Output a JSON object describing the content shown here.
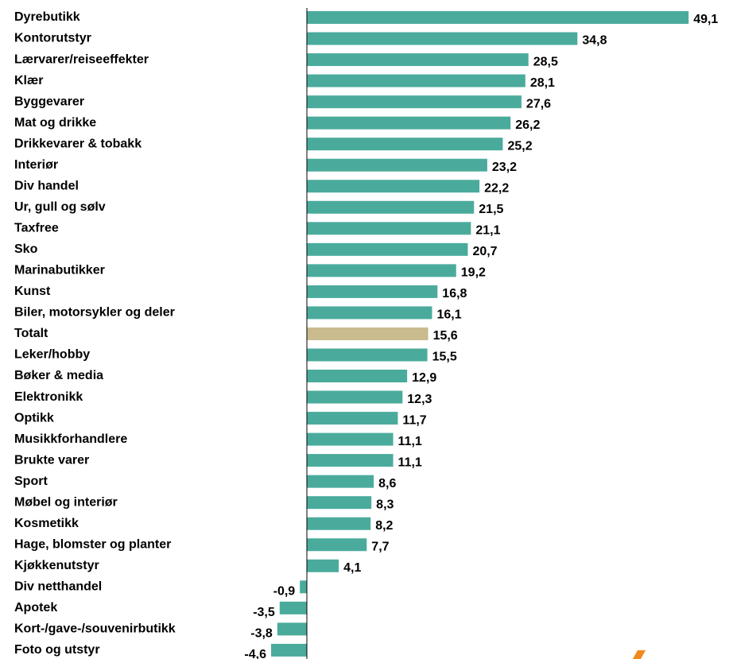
{
  "chart_data": {
    "type": "barh",
    "categories": [
      "Dyrebutikk",
      "Kontorutstyr",
      "Lærvarer/reiseeffekter",
      "Klær",
      "Byggevarer",
      "Mat og drikke",
      "Drikkevarer & tobakk",
      "Interiør",
      "Div handel",
      "Ur, gull og sølv",
      "Taxfree",
      "Sko",
      "Marinabutikker",
      "Kunst",
      "Biler, motorsykler og deler",
      "Totalt",
      "Leker/hobby",
      "Bøker & media",
      "Elektronikk",
      "Optikk",
      "Musikkforhandlere",
      "Brukte varer",
      "Sport",
      "Møbel og interiør",
      "Kosmetikk",
      "Hage, blomster og planter",
      "Kjøkkenutstyr",
      "Div netthandel",
      "Apotek",
      "Kort-/gave-/souvenirbutikk",
      "Foto og utstyr"
    ],
    "values": [
      49.1,
      34.8,
      28.5,
      28.1,
      27.6,
      26.2,
      25.2,
      23.2,
      22.2,
      21.5,
      21.1,
      20.7,
      19.2,
      16.8,
      16.1,
      15.6,
      15.5,
      12.9,
      12.3,
      11.7,
      11.1,
      11.1,
      8.6,
      8.3,
      8.2,
      7.7,
      4.1,
      -0.9,
      -3.5,
      -3.8,
      -4.6
    ],
    "value_labels": [
      "49,1",
      "34,8",
      "28,5",
      "28,1",
      "27,6",
      "26,2",
      "25,2",
      "23,2",
      "22,2",
      "21,5",
      "21,1",
      "20,7",
      "19,2",
      "16,8",
      "16,1",
      "15,6",
      "15,5",
      "12,9",
      "12,3",
      "11,7",
      "11,1",
      "11,1",
      "8,6",
      "8,3",
      "8,2",
      "7,7",
      "4,1",
      "-0,9",
      "-3,5",
      "-3,8",
      "-4,6"
    ],
    "colors": [
      "#4aab9c",
      "#4aab9c",
      "#4aab9c",
      "#4aab9c",
      "#4aab9c",
      "#4aab9c",
      "#4aab9c",
      "#4aab9c",
      "#4aab9c",
      "#4aab9c",
      "#4aab9c",
      "#4aab9c",
      "#4aab9c",
      "#4aab9c",
      "#4aab9c",
      "#c9bb8e",
      "#4aab9c",
      "#4aab9c",
      "#4aab9c",
      "#4aab9c",
      "#4aab9c",
      "#4aab9c",
      "#4aab9c",
      "#4aab9c",
      "#4aab9c",
      "#4aab9c",
      "#4aab9c",
      "#4aab9c",
      "#4aab9c",
      "#4aab9c",
      "#4aab9c"
    ]
  }
}
